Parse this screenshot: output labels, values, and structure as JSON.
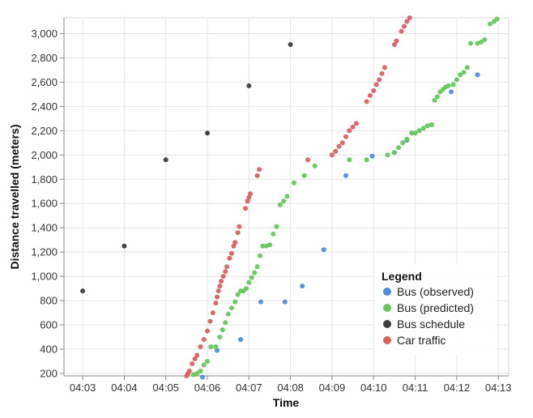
{
  "chart_data": {
    "type": "scatter",
    "xlabel": "Time",
    "ylabel": "Distance travelled (meters)",
    "x_ticks": [
      "04:03",
      "04:04",
      "04:05",
      "04:06",
      "04:07",
      "04:08",
      "04:09",
      "04:10",
      "04:11",
      "04:12",
      "04:13"
    ],
    "y_ticks": [
      "200",
      "400",
      "600",
      "800",
      "1,000",
      "1,200",
      "1,400",
      "1,600",
      "1,800",
      "2,000",
      "2,200",
      "2,400",
      "2,600",
      "2,800",
      "3,000"
    ],
    "xlim": [
      "04:02:33",
      "04:13:15"
    ],
    "ylim": [
      180,
      3130
    ],
    "grid": true,
    "legend": {
      "title": "Legend",
      "position": "bottom-right"
    },
    "series": [
      {
        "name": "Bus (observed)",
        "color": "#4c8de0",
        "points": [
          [
            "04:05:53",
            170
          ],
          [
            "04:06:14",
            390
          ],
          [
            "04:06:48",
            480
          ],
          [
            "04:07:17",
            790
          ],
          [
            "04:07:52",
            790
          ],
          [
            "04:08:17",
            920
          ],
          [
            "04:08:48",
            1220
          ],
          [
            "04:09:20",
            1830
          ],
          [
            "04:09:58",
            1990
          ],
          [
            "04:10:30",
            2020
          ],
          [
            "04:10:48",
            2120
          ],
          [
            "04:11:52",
            2520
          ],
          [
            "04:12:30",
            2660
          ]
        ]
      },
      {
        "name": "Bus (predicted)",
        "color": "#62c95a",
        "points": [
          [
            "04:05:40",
            190
          ],
          [
            "04:05:45",
            200
          ],
          [
            "04:05:50",
            220
          ],
          [
            "04:05:55",
            270
          ],
          [
            "04:06:00",
            300
          ],
          [
            "04:06:05",
            420
          ],
          [
            "04:06:12",
            420
          ],
          [
            "04:06:18",
            500
          ],
          [
            "04:06:22",
            560
          ],
          [
            "04:06:26",
            620
          ],
          [
            "04:06:30",
            690
          ],
          [
            "04:06:35",
            740
          ],
          [
            "04:06:40",
            790
          ],
          [
            "04:06:44",
            850
          ],
          [
            "04:06:48",
            880
          ],
          [
            "04:06:52",
            880
          ],
          [
            "04:06:56",
            900
          ],
          [
            "04:07:00",
            950
          ],
          [
            "04:07:04",
            990
          ],
          [
            "04:07:08",
            1030
          ],
          [
            "04:07:12",
            1080
          ],
          [
            "04:07:16",
            1170
          ],
          [
            "04:07:20",
            1250
          ],
          [
            "04:07:25",
            1250
          ],
          [
            "04:07:30",
            1260
          ],
          [
            "04:07:35",
            1350
          ],
          [
            "04:07:40",
            1410
          ],
          [
            "04:07:45",
            1590
          ],
          [
            "04:07:50",
            1620
          ],
          [
            "04:07:55",
            1660
          ],
          [
            "04:08:05",
            1770
          ],
          [
            "04:08:20",
            1830
          ],
          [
            "04:08:35",
            1910
          ],
          [
            "04:09:25",
            1960
          ],
          [
            "04:09:50",
            1960
          ],
          [
            "04:10:20",
            2000
          ],
          [
            "04:10:30",
            2020
          ],
          [
            "04:10:36",
            2060
          ],
          [
            "04:10:42",
            2100
          ],
          [
            "04:10:48",
            2130
          ],
          [
            "04:10:55",
            2180
          ],
          [
            "04:11:00",
            2180
          ],
          [
            "04:11:06",
            2200
          ],
          [
            "04:11:12",
            2220
          ],
          [
            "04:11:18",
            2240
          ],
          [
            "04:11:24",
            2250
          ],
          [
            "04:11:28",
            2450
          ],
          [
            "04:11:32",
            2480
          ],
          [
            "04:11:36",
            2520
          ],
          [
            "04:11:40",
            2540
          ],
          [
            "04:11:44",
            2560
          ],
          [
            "04:11:48",
            2570
          ],
          [
            "04:11:55",
            2580
          ],
          [
            "04:12:00",
            2620
          ],
          [
            "04:12:05",
            2660
          ],
          [
            "04:12:10",
            2680
          ],
          [
            "04:12:15",
            2720
          ],
          [
            "04:12:20",
            2920
          ],
          [
            "04:12:30",
            2920
          ],
          [
            "04:12:35",
            2930
          ],
          [
            "04:12:40",
            2950
          ],
          [
            "04:12:48",
            3080
          ],
          [
            "04:12:54",
            3100
          ],
          [
            "04:12:58",
            3120
          ]
        ]
      },
      {
        "name": "Bus schedule",
        "color": "#3d3d3d",
        "points": [
          [
            "04:03:00",
            880
          ],
          [
            "04:04:00",
            1250
          ],
          [
            "04:05:00",
            1960
          ],
          [
            "04:06:00",
            2180
          ],
          [
            "04:07:00",
            2570
          ],
          [
            "04:08:00",
            2910
          ]
        ]
      },
      {
        "name": "Car traffic",
        "color": "#dd5f5f",
        "points": [
          [
            "04:05:30",
            180
          ],
          [
            "04:05:32",
            200
          ],
          [
            "04:05:34",
            220
          ],
          [
            "04:05:38",
            280
          ],
          [
            "04:05:42",
            320
          ],
          [
            "04:05:45",
            350
          ],
          [
            "04:05:50",
            420
          ],
          [
            "04:05:55",
            480
          ],
          [
            "04:06:00",
            550
          ],
          [
            "04:06:04",
            630
          ],
          [
            "04:06:08",
            700
          ],
          [
            "04:06:12",
            780
          ],
          [
            "04:06:14",
            830
          ],
          [
            "04:06:16",
            880
          ],
          [
            "04:06:18",
            920
          ],
          [
            "04:06:20",
            960
          ],
          [
            "04:06:23",
            1000
          ],
          [
            "04:06:26",
            1040
          ],
          [
            "04:06:28",
            1080
          ],
          [
            "04:06:32",
            1150
          ],
          [
            "04:06:35",
            1190
          ],
          [
            "04:06:38",
            1250
          ],
          [
            "04:06:40",
            1280
          ],
          [
            "04:06:44",
            1360
          ],
          [
            "04:06:46",
            1410
          ],
          [
            "04:06:55",
            1560
          ],
          [
            "04:06:58",
            1620
          ],
          [
            "04:07:00",
            1650
          ],
          [
            "04:07:02",
            1680
          ],
          [
            "04:07:12",
            1830
          ],
          [
            "04:07:15",
            1880
          ],
          [
            "04:08:25",
            1960
          ],
          [
            "04:09:00",
            2000
          ],
          [
            "04:09:05",
            2030
          ],
          [
            "04:09:10",
            2070
          ],
          [
            "04:09:15",
            2100
          ],
          [
            "04:09:20",
            2150
          ],
          [
            "04:09:25",
            2200
          ],
          [
            "04:09:30",
            2230
          ],
          [
            "04:09:35",
            2260
          ],
          [
            "04:09:50",
            2440
          ],
          [
            "04:09:55",
            2490
          ],
          [
            "04:10:00",
            2530
          ],
          [
            "04:10:04",
            2580
          ],
          [
            "04:10:08",
            2620
          ],
          [
            "04:10:12",
            2670
          ],
          [
            "04:10:16",
            2720
          ],
          [
            "04:10:30",
            2910
          ],
          [
            "04:10:33",
            2940
          ],
          [
            "04:10:40",
            3020
          ],
          [
            "04:10:44",
            3060
          ],
          [
            "04:10:48",
            3100
          ],
          [
            "04:10:52",
            3130
          ]
        ]
      }
    ]
  }
}
